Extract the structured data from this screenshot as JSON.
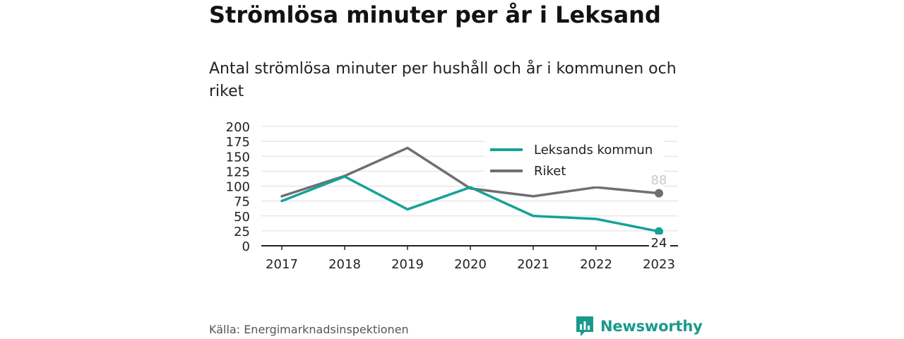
{
  "title": "Strömlösa minuter per år i Leksand",
  "subtitle": "Antal strömlösa minuter per hushåll och år i kommunen och riket",
  "source": "Källa: Energimarknadsinspektionen",
  "logo_text": "Newsworthy",
  "colors": {
    "teal": "#16a296",
    "gray": "#6f6f73",
    "grid": "#dddddd",
    "axis": "#222222"
  },
  "chart_data": {
    "type": "line",
    "x": [
      "2017",
      "2018",
      "2019",
      "2020",
      "2021",
      "2022",
      "2023"
    ],
    "ylim": [
      0,
      200
    ],
    "yticks": [
      "0",
      "25",
      "50",
      "75",
      "100",
      "125",
      "150",
      "175",
      "200"
    ],
    "grid": true,
    "legend_position": "top-right",
    "series": [
      {
        "name": "Leksands kommun",
        "color": "#16a296",
        "values": [
          75,
          116,
          61,
          98,
          50,
          45,
          24
        ],
        "end_label": "24"
      },
      {
        "name": "Riket",
        "color": "#6f6f73",
        "values": [
          83,
          117,
          164,
          96,
          83,
          98,
          88
        ],
        "end_label": "88"
      }
    ]
  }
}
